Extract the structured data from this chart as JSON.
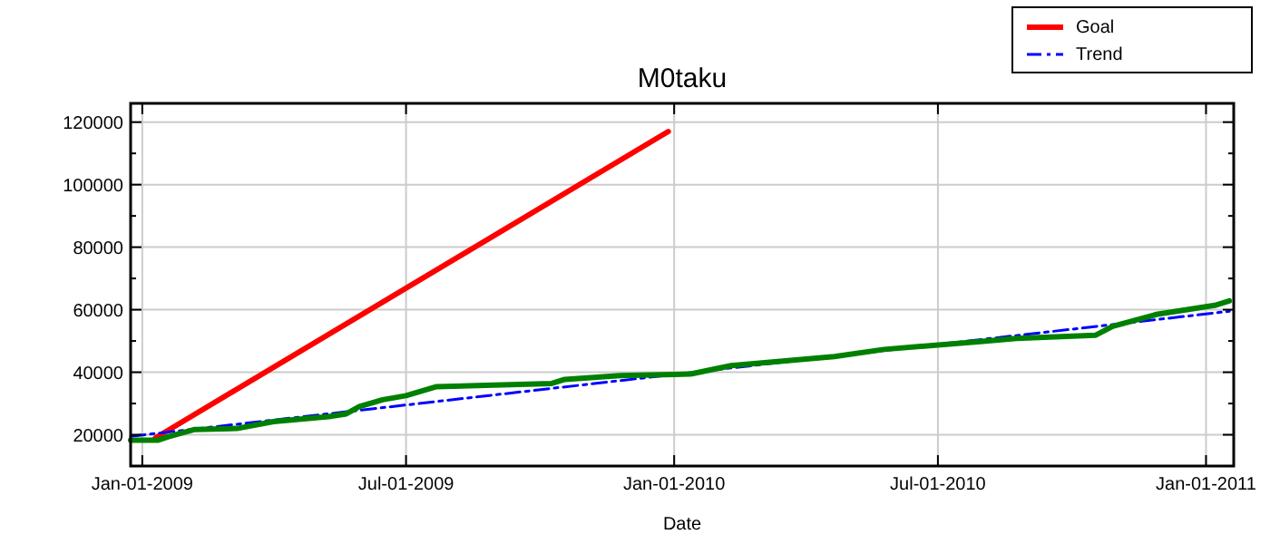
{
  "chart_data": {
    "type": "line",
    "title": "M0taku",
    "xlabel": "Date",
    "xlim": [
      "2008-12-24",
      "2011-01-20"
    ],
    "xticks": [
      {
        "value": "2009-01-01",
        "label": "Jan-01-2009"
      },
      {
        "value": "2009-07-01",
        "label": "Jul-01-2009"
      },
      {
        "value": "2010-01-01",
        "label": "Jan-01-2010"
      },
      {
        "value": "2010-07-01",
        "label": "Jul-01-2010"
      },
      {
        "value": "2011-01-01",
        "label": "Jan-01-2011"
      }
    ],
    "ylim": [
      10000,
      126000
    ],
    "yticks": [
      20000,
      40000,
      60000,
      80000,
      100000,
      120000
    ],
    "grid": true,
    "legend": "top right",
    "series": [
      {
        "name": "Goal",
        "color": "#ff0000",
        "line_style": "solid",
        "x": [
          "2009-01-10",
          "2009-12-28"
        ],
        "values": [
          19000,
          117000
        ]
      },
      {
        "name": "Trend",
        "color": "#0000ff",
        "line_style": "dashdot",
        "x": [
          "2008-12-24",
          "2011-01-17"
        ],
        "values": [
          19500,
          59500
        ]
      },
      {
        "color": "#008000",
        "line_style": "solid",
        "x": [
          "2008-12-24",
          "2009-01-12",
          "2009-01-19",
          "2009-02-06",
          "2009-03-07",
          "2009-04-01",
          "2009-05-09",
          "2009-05-21",
          "2009-05-30",
          "2009-06-15",
          "2009-07-01",
          "2009-07-22",
          "2009-10-09",
          "2009-10-18",
          "2009-11-25",
          "2010-01-01",
          "2010-01-12",
          "2010-02-09",
          "2010-04-21",
          "2010-05-25",
          "2010-07-30",
          "2010-08-24",
          "2010-10-17",
          "2010-10-29",
          "2010-11-28",
          "2011-01-07",
          "2011-01-17"
        ],
        "values": [
          18300,
          18300,
          19400,
          21700,
          22000,
          24200,
          25800,
          26700,
          29000,
          31200,
          32500,
          35400,
          36400,
          37700,
          38900,
          39300,
          39400,
          42100,
          45000,
          47300,
          49800,
          50800,
          51800,
          54700,
          58500,
          61400,
          62800
        ]
      }
    ]
  }
}
